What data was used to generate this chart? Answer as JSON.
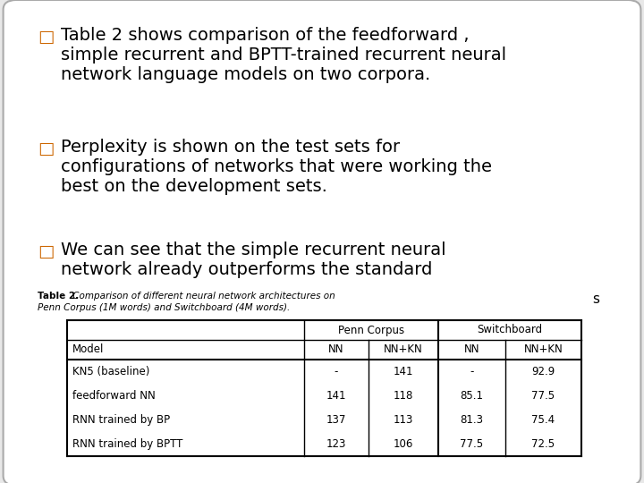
{
  "background_color": "#e8e8e8",
  "slide_bg": "#ffffff",
  "bullet_points": [
    {
      "bullet": "□",
      "lines": [
        "Table 2 shows comparison of the feedforward ,",
        "simple recurrent and BPTT-trained recurrent neural",
        "network language models on two corpora."
      ]
    },
    {
      "bullet": "□",
      "lines": [
        "Perplexity is shown on the test sets for",
        "configurations of networks that were working the",
        "best on the development sets."
      ]
    },
    {
      "bullet": "□",
      "lines": [
        "We can see that the simple recurrent neural",
        "network already outperforms the standard"
      ]
    }
  ],
  "s_label": "s",
  "table_caption_bold": "Table 2.",
  "table_caption_italic1": " Comparison of different neural network architectures on",
  "table_caption_italic2": "Penn Corpus (1M words) and Switchboard (4M words).",
  "table_headers_top": [
    "Penn Corpus",
    "Switchboard"
  ],
  "table_headers_sub": [
    "Model",
    "NN",
    "NN+KN",
    "NN",
    "NN+KN"
  ],
  "table_rows": [
    [
      "KN5 (baseline)",
      "-",
      "141",
      "-",
      "92.9"
    ],
    [
      "feedforward NN",
      "141",
      "118",
      "85.1",
      "77.5"
    ],
    [
      "RNN trained by BP",
      "137",
      "113",
      "81.3",
      "75.4"
    ],
    [
      "RNN trained by BPTT",
      "123",
      "106",
      "77.5",
      "72.5"
    ]
  ],
  "font_size_bullet": 14,
  "font_size_table": 8.5,
  "font_size_caption": 7.5,
  "font_size_s": 11,
  "bullet_color": "#cc6600"
}
